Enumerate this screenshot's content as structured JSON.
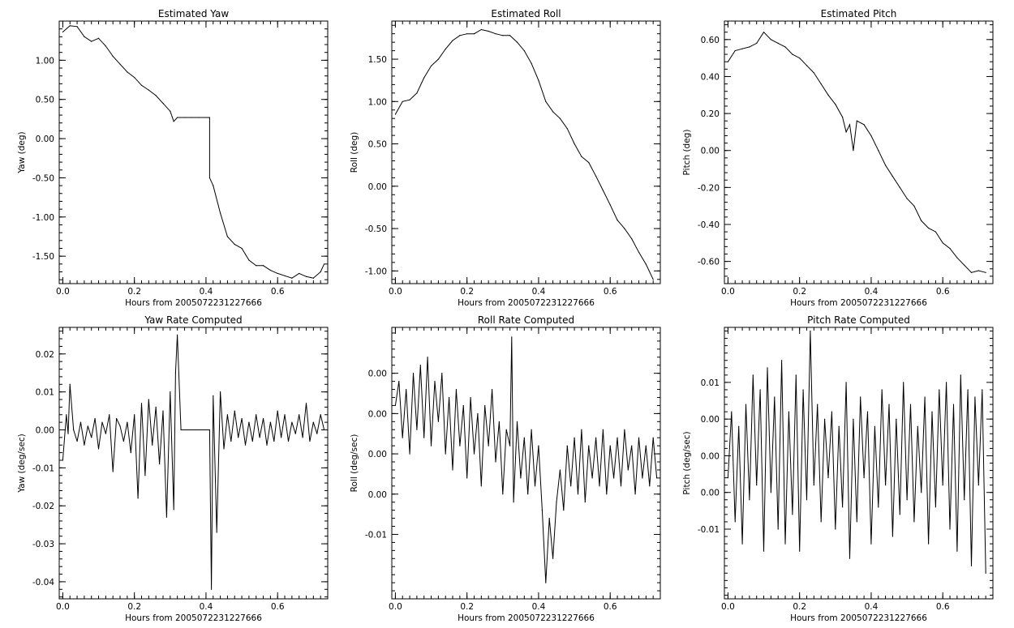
{
  "chart_data": [
    {
      "type": "line",
      "title": "Estimated Yaw",
      "xlabel": "Hours from 2005072231227666",
      "ylabel": "Yaw (deg)",
      "xlim": [
        -0.01,
        0.74
      ],
      "ylim": [
        -1.85,
        1.5
      ],
      "xticks": [
        0,
        0.2,
        0.4,
        0.6
      ],
      "xtick_labels": [
        "0.0",
        "0.2",
        "0.4",
        "0.6"
      ],
      "yticks": [
        -1.5,
        -1.0,
        -0.5,
        0,
        0.5,
        1.0
      ],
      "ytick_labels": [
        "-1.50",
        "-1.00",
        "-0.50",
        "0.00",
        "0.50",
        "1.00"
      ],
      "x": [
        0,
        0.02,
        0.04,
        0.06,
        0.08,
        0.1,
        0.12,
        0.14,
        0.16,
        0.18,
        0.2,
        0.22,
        0.24,
        0.26,
        0.28,
        0.3,
        0.31,
        0.32,
        0.34,
        0.36,
        0.38,
        0.4,
        0.41,
        0.41,
        0.42,
        0.44,
        0.46,
        0.48,
        0.5,
        0.52,
        0.54,
        0.56,
        0.58,
        0.6,
        0.62,
        0.64,
        0.66,
        0.68,
        0.7,
        0.72,
        0.73
      ],
      "series": [
        {
          "values": [
            1.36,
            1.44,
            1.43,
            1.3,
            1.24,
            1.28,
            1.18,
            1.05,
            0.95,
            0.85,
            0.78,
            0.68,
            0.62,
            0.55,
            0.45,
            0.35,
            0.22,
            0.27,
            0.27,
            0.27,
            0.27,
            0.27,
            0.27,
            -0.5,
            -0.6,
            -0.95,
            -1.25,
            -1.35,
            -1.4,
            -1.55,
            -1.62,
            -1.62,
            -1.68,
            -1.72,
            -1.75,
            -1.78,
            -1.72,
            -1.76,
            -1.78,
            -1.7,
            -1.6
          ]
        }
      ]
    },
    {
      "type": "line",
      "title": "Estimated Roll",
      "xlabel": "Hours from 2005072231227666",
      "ylabel": "Roll (deg)",
      "xlim": [
        -0.01,
        0.74
      ],
      "ylim": [
        -1.15,
        1.95
      ],
      "xticks": [
        0,
        0.2,
        0.4,
        0.6
      ],
      "xtick_labels": [
        "0.0",
        "0.2",
        "0.4",
        "0.6"
      ],
      "yticks": [
        -1.0,
        -0.5,
        0,
        0.5,
        1.0,
        1.5
      ],
      "ytick_labels": [
        "-1.00",
        "-0.50",
        "0.00",
        "0.50",
        "1.00",
        "1.50"
      ],
      "x": [
        0,
        0.02,
        0.04,
        0.06,
        0.08,
        0.1,
        0.12,
        0.14,
        0.16,
        0.18,
        0.2,
        0.22,
        0.24,
        0.26,
        0.28,
        0.3,
        0.32,
        0.34,
        0.36,
        0.38,
        0.4,
        0.42,
        0.44,
        0.46,
        0.48,
        0.5,
        0.52,
        0.54,
        0.56,
        0.58,
        0.6,
        0.62,
        0.64,
        0.66,
        0.68,
        0.7,
        0.72
      ],
      "series": [
        {
          "values": [
            0.85,
            1.0,
            1.02,
            1.1,
            1.28,
            1.42,
            1.5,
            1.62,
            1.72,
            1.78,
            1.8,
            1.8,
            1.85,
            1.83,
            1.8,
            1.78,
            1.78,
            1.7,
            1.6,
            1.45,
            1.25,
            1.0,
            0.88,
            0.8,
            0.68,
            0.5,
            0.35,
            0.28,
            0.12,
            -0.05,
            -0.22,
            -0.4,
            -0.5,
            -0.62,
            -0.78,
            -0.92,
            -1.1
          ]
        }
      ]
    },
    {
      "type": "line",
      "title": "Estimated Pitch",
      "xlabel": "Hours from 2005072231227666",
      "ylabel": "Pitch (deg)",
      "xlim": [
        -0.01,
        0.74
      ],
      "ylim": [
        -0.72,
        0.7
      ],
      "xticks": [
        0,
        0.2,
        0.4,
        0.6
      ],
      "xtick_labels": [
        "0.0",
        "0.2",
        "0.4",
        "0.6"
      ],
      "yticks": [
        -0.6,
        -0.4,
        -0.2,
        0,
        0.2,
        0.4,
        0.6
      ],
      "ytick_labels": [
        "-0.60",
        "-0.40",
        "-0.20",
        "0.00",
        "0.20",
        "0.40",
        "0.60"
      ],
      "x": [
        0,
        0.02,
        0.04,
        0.06,
        0.08,
        0.1,
        0.12,
        0.14,
        0.16,
        0.18,
        0.2,
        0.22,
        0.24,
        0.26,
        0.28,
        0.3,
        0.32,
        0.33,
        0.34,
        0.35,
        0.36,
        0.38,
        0.4,
        0.42,
        0.44,
        0.46,
        0.48,
        0.5,
        0.52,
        0.54,
        0.56,
        0.58,
        0.6,
        0.62,
        0.64,
        0.66,
        0.68,
        0.7,
        0.72
      ],
      "series": [
        {
          "values": [
            0.48,
            0.54,
            0.55,
            0.56,
            0.58,
            0.64,
            0.6,
            0.58,
            0.56,
            0.52,
            0.5,
            0.46,
            0.42,
            0.36,
            0.3,
            0.25,
            0.18,
            0.1,
            0.14,
            0.0,
            0.16,
            0.14,
            0.08,
            0.0,
            -0.08,
            -0.14,
            -0.2,
            -0.26,
            -0.3,
            -0.38,
            -0.42,
            -0.44,
            -0.5,
            -0.53,
            -0.58,
            -0.62,
            -0.66,
            -0.65,
            -0.66
          ]
        }
      ]
    },
    {
      "type": "line",
      "title": "Yaw Rate Computed",
      "xlabel": "Hours from 2005072231227666",
      "ylabel": "Yaw (deg/sec)",
      "xlim": [
        -0.01,
        0.74
      ],
      "ylim": [
        -0.0445,
        0.027
      ],
      "xticks": [
        0,
        0.2,
        0.4,
        0.6
      ],
      "xtick_labels": [
        "0.0",
        "0.2",
        "0.4",
        "0.6"
      ],
      "yticks": [
        -0.04,
        -0.03,
        -0.02,
        -0.01,
        0,
        0.01,
        0.02
      ],
      "ytick_labels": [
        "-0.04",
        "-0.03",
        "-0.02",
        "-0.01",
        "0.00",
        "0.01",
        "0.02"
      ],
      "x": [
        0,
        0.01,
        0.015,
        0.02,
        0.03,
        0.04,
        0.05,
        0.06,
        0.07,
        0.08,
        0.09,
        0.1,
        0.11,
        0.12,
        0.13,
        0.14,
        0.15,
        0.16,
        0.17,
        0.18,
        0.19,
        0.2,
        0.21,
        0.22,
        0.23,
        0.24,
        0.25,
        0.26,
        0.27,
        0.28,
        0.29,
        0.3,
        0.31,
        0.315,
        0.32,
        0.33,
        0.35,
        0.37,
        0.39,
        0.41,
        0.415,
        0.42,
        0.43,
        0.44,
        0.45,
        0.46,
        0.47,
        0.48,
        0.49,
        0.5,
        0.51,
        0.52,
        0.53,
        0.54,
        0.55,
        0.56,
        0.57,
        0.58,
        0.59,
        0.6,
        0.61,
        0.62,
        0.63,
        0.64,
        0.65,
        0.66,
        0.67,
        0.68,
        0.69,
        0.7,
        0.71,
        0.72,
        0.73
      ],
      "series": [
        {
          "values": [
            -0.008,
            0.004,
            -0.001,
            0.012,
            0.0,
            -0.003,
            0.002,
            -0.004,
            0.001,
            -0.002,
            0.003,
            -0.005,
            0.002,
            -0.001,
            0.004,
            -0.011,
            0.003,
            0.001,
            -0.003,
            0.002,
            -0.006,
            0.004,
            -0.018,
            0.007,
            -0.012,
            0.008,
            -0.004,
            0.006,
            -0.009,
            0.005,
            -0.023,
            0.01,
            -0.021,
            0.015,
            0.025,
            0.0,
            0.0,
            0.0,
            0.0,
            0.0,
            -0.042,
            0.009,
            -0.027,
            0.01,
            -0.005,
            0.004,
            -0.003,
            0.005,
            -0.002,
            0.003,
            -0.004,
            0.002,
            -0.003,
            0.004,
            -0.002,
            0.003,
            -0.004,
            0.002,
            -0.003,
            0.005,
            -0.002,
            0.004,
            -0.003,
            0.002,
            -0.001,
            0.004,
            -0.002,
            0.007,
            -0.003,
            0.002,
            -0.001,
            0.004,
            0.0
          ]
        }
      ]
    },
    {
      "type": "line",
      "title": "Roll Rate Computed",
      "xlabel": "Hours from 2005072231227666",
      "ylabel": "Roll (deg/sec)",
      "xlim": [
        -0.01,
        0.74
      ],
      "ylim": [
        -0.018,
        0.0157
      ],
      "xticks": [
        0,
        0.2,
        0.4,
        0.6
      ],
      "xtick_labels": [
        "0.0",
        "0.2",
        "0.4",
        "0.6"
      ],
      "yticks": [
        -0.01,
        -0.005,
        0,
        0.005,
        0.01
      ],
      "ytick_labels": [
        "-0.01",
        "0.00",
        "0.00",
        "0.00",
        "0.00"
      ],
      "x": [
        0,
        0.01,
        0.02,
        0.03,
        0.04,
        0.05,
        0.06,
        0.07,
        0.08,
        0.09,
        0.1,
        0.11,
        0.12,
        0.13,
        0.14,
        0.15,
        0.16,
        0.17,
        0.18,
        0.19,
        0.2,
        0.21,
        0.22,
        0.23,
        0.24,
        0.25,
        0.26,
        0.27,
        0.28,
        0.29,
        0.3,
        0.31,
        0.32,
        0.325,
        0.33,
        0.34,
        0.35,
        0.36,
        0.37,
        0.38,
        0.39,
        0.4,
        0.41,
        0.42,
        0.43,
        0.44,
        0.45,
        0.46,
        0.47,
        0.48,
        0.49,
        0.5,
        0.51,
        0.52,
        0.53,
        0.54,
        0.55,
        0.56,
        0.57,
        0.58,
        0.59,
        0.6,
        0.61,
        0.62,
        0.63,
        0.64,
        0.65,
        0.66,
        0.67,
        0.68,
        0.69,
        0.7,
        0.71,
        0.72,
        0.73
      ],
      "series": [
        {
          "values": [
            0.006,
            0.009,
            0.002,
            0.008,
            0.0,
            0.01,
            0.003,
            0.011,
            0.002,
            0.012,
            0.001,
            0.009,
            0.004,
            0.01,
            0.0,
            0.007,
            -0.002,
            0.008,
            0.001,
            0.006,
            -0.003,
            0.007,
            0.0,
            0.005,
            -0.004,
            0.006,
            0.001,
            0.008,
            -0.001,
            0.004,
            -0.005,
            0.003,
            0.001,
            0.0145,
            -0.006,
            0.004,
            -0.003,
            0.002,
            -0.005,
            0.003,
            -0.004,
            0.001,
            -0.007,
            -0.016,
            -0.008,
            -0.013,
            -0.006,
            -0.002,
            -0.007,
            0.001,
            -0.004,
            0.002,
            -0.005,
            0.003,
            -0.006,
            0.001,
            -0.003,
            0.002,
            -0.004,
            0.003,
            -0.005,
            0.001,
            -0.003,
            0.002,
            -0.004,
            0.003,
            -0.002,
            0.001,
            -0.005,
            0.002,
            -0.003,
            0.001,
            -0.004,
            0.002,
            -0.003
          ]
        }
      ]
    },
    {
      "type": "line",
      "title": "Pitch Rate Computed",
      "xlabel": "Hours from 2005072231227666",
      "ylabel": "Pitch (deg/sec)",
      "xlim": [
        -0.01,
        0.74
      ],
      "ylim": [
        -0.0195,
        0.0175
      ],
      "xticks": [
        0,
        0.2,
        0.4,
        0.6
      ],
      "xtick_labels": [
        "0.0",
        "0.2",
        "0.4",
        "0.6"
      ],
      "yticks": [
        -0.01,
        -0.005,
        0,
        0.005,
        0.01
      ],
      "ytick_labels": [
        "-0.01",
        "0.00",
        "0.00",
        "0.00",
        "0.01"
      ],
      "x": [
        0,
        0.01,
        0.02,
        0.03,
        0.04,
        0.05,
        0.06,
        0.07,
        0.08,
        0.09,
        0.1,
        0.11,
        0.12,
        0.13,
        0.14,
        0.15,
        0.16,
        0.17,
        0.18,
        0.19,
        0.2,
        0.21,
        0.22,
        0.23,
        0.24,
        0.25,
        0.26,
        0.27,
        0.28,
        0.29,
        0.3,
        0.31,
        0.32,
        0.33,
        0.34,
        0.35,
        0.36,
        0.37,
        0.38,
        0.39,
        0.4,
        0.41,
        0.42,
        0.43,
        0.44,
        0.45,
        0.46,
        0.47,
        0.48,
        0.49,
        0.5,
        0.51,
        0.52,
        0.53,
        0.54,
        0.55,
        0.56,
        0.57,
        0.58,
        0.59,
        0.6,
        0.61,
        0.62,
        0.63,
        0.64,
        0.65,
        0.66,
        0.67,
        0.68,
        0.69,
        0.7,
        0.71,
        0.72
      ],
      "series": [
        {
          "values": [
            -0.003,
            0.006,
            -0.009,
            0.004,
            -0.012,
            0.007,
            -0.006,
            0.011,
            -0.004,
            0.009,
            -0.013,
            0.012,
            -0.005,
            0.008,
            -0.01,
            0.013,
            -0.012,
            0.006,
            -0.008,
            0.011,
            -0.013,
            0.009,
            -0.006,
            0.017,
            -0.004,
            0.007,
            -0.009,
            0.005,
            -0.003,
            0.006,
            -0.01,
            0.004,
            -0.007,
            0.01,
            -0.014,
            0.005,
            -0.009,
            0.008,
            -0.003,
            0.006,
            -0.012,
            0.004,
            -0.007,
            0.009,
            -0.004,
            0.007,
            -0.011,
            0.005,
            -0.008,
            0.01,
            -0.006,
            0.007,
            -0.009,
            0.004,
            -0.005,
            0.008,
            -0.012,
            0.006,
            -0.007,
            0.009,
            -0.004,
            0.01,
            -0.01,
            0.007,
            -0.013,
            0.011,
            -0.006,
            0.009,
            -0.015,
            0.008,
            -0.004,
            0.009,
            -0.016
          ]
        }
      ]
    }
  ]
}
